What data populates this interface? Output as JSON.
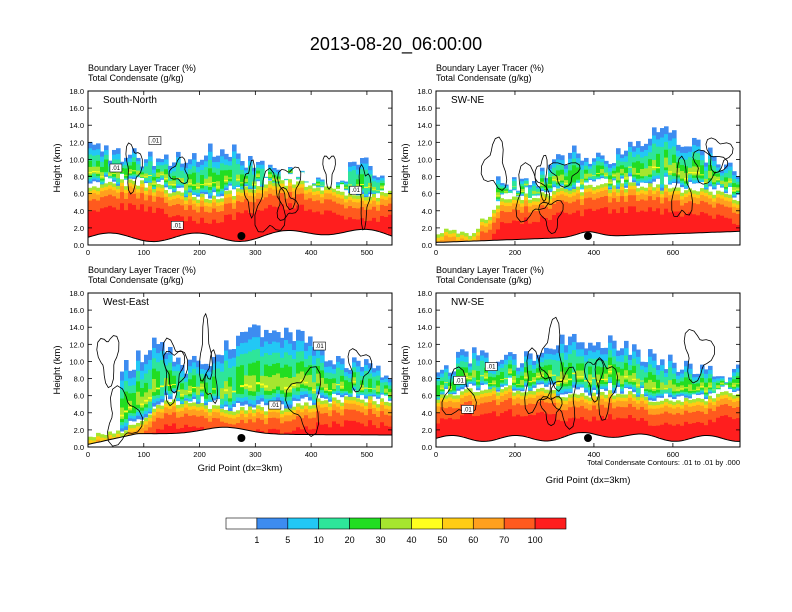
{
  "figure": {
    "title": "2013-08-20_06:00:00",
    "note": "Total Condensate Contours: .01 to .01 by .000"
  },
  "colorbar": {
    "colors": [
      "#ffffff",
      "#3d8cf0",
      "#22c8f5",
      "#2ee59a",
      "#22dd22",
      "#a6e62f",
      "#ffff1e",
      "#ffcc14",
      "#ffa01e",
      "#ff5a1e",
      "#ff1e1e"
    ],
    "labels": [
      "1",
      "5",
      "10",
      "20",
      "30",
      "40",
      "50",
      "60",
      "70",
      "100"
    ]
  },
  "chart_data": [
    {
      "type": "heatmap",
      "name": "South-North",
      "subtitle1": "Boundary Layer Tracer   (%)",
      "subtitle2": "Total Condensate   (g/kg)",
      "xlabel": "",
      "ylabel": "Height (km)",
      "xlim": [
        0,
        545
      ],
      "ylim": [
        0,
        18
      ],
      "xticks": [
        "0",
        "100",
        "200",
        "300",
        "400",
        "500"
      ],
      "yticks": [
        "0.0",
        "2.0",
        "4.0",
        "6.0",
        "8.0",
        "10.0",
        "12.0",
        "14.0",
        "16.0",
        "18.0"
      ],
      "marker_x": 275,
      "contour_labels": [
        {
          "x": 50,
          "y": 9.0,
          "text": ".01"
        },
        {
          "x": 120,
          "y": 12.2,
          "text": ".01"
        },
        {
          "x": 160,
          "y": 2.3,
          "text": ".01"
        },
        {
          "x": 480,
          "y": 6.4,
          "text": ".01"
        }
      ]
    },
    {
      "type": "heatmap",
      "name": "SW-NE",
      "subtitle1": "Boundary Layer Tracer   (%)",
      "subtitle2": "Total Condensate   (g/kg)",
      "xlabel": "",
      "ylabel": "Height (km)",
      "xlim": [
        0,
        770
      ],
      "ylim": [
        0,
        18
      ],
      "xticks": [
        "0",
        "200",
        "400",
        "600"
      ],
      "yticks": [
        "0.0",
        "2.0",
        "4.0",
        "6.0",
        "8.0",
        "10.0",
        "12.0",
        "14.0",
        "16.0",
        "18.0"
      ],
      "marker_x": 385,
      "contour_labels": []
    },
    {
      "type": "heatmap",
      "name": "West-East",
      "subtitle1": "Boundary Layer Tracer   (%)",
      "subtitle2": "Total Condensate   (g/kg)",
      "xlabel": "Grid Point (dx=3km)",
      "ylabel": "Height (km)",
      "xlim": [
        0,
        545
      ],
      "ylim": [
        0,
        18
      ],
      "xticks": [
        "0",
        "100",
        "200",
        "300",
        "400",
        "500"
      ],
      "yticks": [
        "0.0",
        "2.0",
        "4.0",
        "6.0",
        "8.0",
        "10.0",
        "12.0",
        "14.0",
        "16.0",
        "18.0"
      ],
      "marker_x": 275,
      "contour_labels": [
        {
          "x": 335,
          "y": 4.9,
          "text": ".01"
        },
        {
          "x": 415,
          "y": 11.8,
          "text": ".01"
        }
      ]
    },
    {
      "type": "heatmap",
      "name": "NW-SE",
      "subtitle1": "Boundary Layer Tracer   (%)",
      "subtitle2": "Total Condensate   (g/kg)",
      "xlabel": "Grid Point (dx=3km)",
      "ylabel": "Height (km)",
      "xlim": [
        0,
        770
      ],
      "ylim": [
        0,
        18
      ],
      "xticks": [
        "0",
        "200",
        "400",
        "600"
      ],
      "yticks": [
        "0.0",
        "2.0",
        "4.0",
        "6.0",
        "8.0",
        "10.0",
        "12.0",
        "14.0",
        "16.0",
        "18.0"
      ],
      "marker_x": 385,
      "contour_labels": [
        {
          "x": 60,
          "y": 7.8,
          "text": ".01"
        },
        {
          "x": 140,
          "y": 9.4,
          "text": ".01"
        },
        {
          "x": 80,
          "y": 4.4,
          "text": ".01"
        }
      ]
    }
  ]
}
